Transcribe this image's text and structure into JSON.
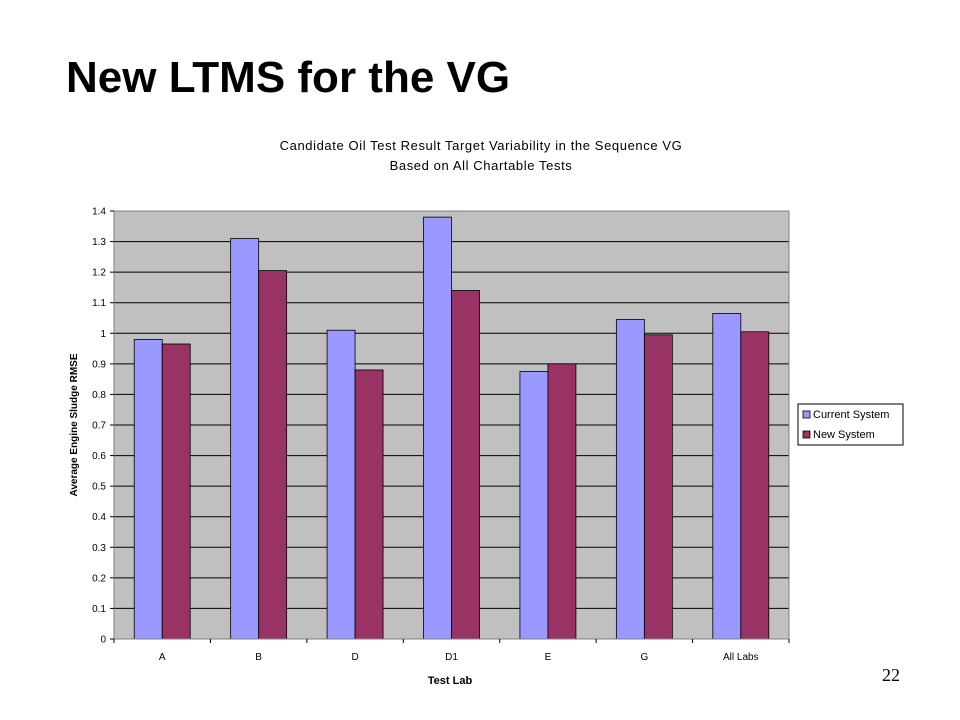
{
  "slide": {
    "title": "New LTMS for the VG",
    "page_number": "22"
  },
  "chart_data": {
    "type": "bar",
    "title": "Candidate Oil Test Result Target Variability in the Sequence VG",
    "subtitle": "Based on All Chartable Tests",
    "xlabel": "Test Lab",
    "ylabel": "Average Engine Sludge RMSE",
    "categories": [
      "A",
      "B",
      "D",
      "D1",
      "E",
      "G",
      "All Labs"
    ],
    "series": [
      {
        "name": "Current System",
        "color": "#9999ff",
        "values": [
          0.98,
          1.31,
          1.01,
          1.38,
          0.875,
          1.045,
          1.065
        ]
      },
      {
        "name": "New System",
        "color": "#993366",
        "values": [
          0.965,
          1.205,
          0.88,
          1.14,
          0.9,
          0.995,
          1.005
        ]
      }
    ],
    "ylim": [
      0,
      1.4
    ],
    "yticks": [
      "0",
      "0.1",
      "0.2",
      "0.3",
      "0.4",
      "0.5",
      "0.6",
      "0.7",
      "0.8",
      "0.9",
      "1",
      "1.1",
      "1.2",
      "1.3",
      "1.4"
    ],
    "grid": true,
    "plot_background": "#c0c0c0",
    "legend_position": "right"
  }
}
